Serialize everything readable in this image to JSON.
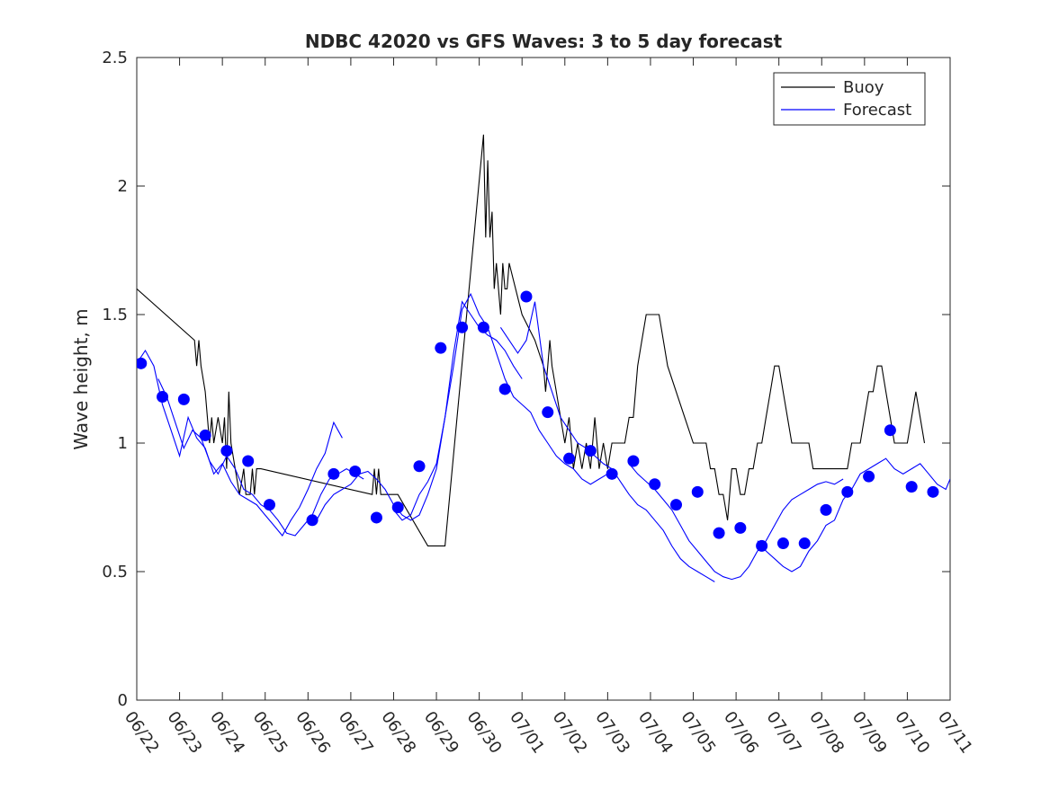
{
  "chart_data": {
    "type": "line",
    "title": "NDBC 42020 vs GFS Waves: 3 to 5 day forecast",
    "xlabel": "",
    "ylabel": "Wave height, m",
    "ylim": [
      0,
      2.5
    ],
    "xlim": [
      "06/22",
      "07/11"
    ],
    "grid": false,
    "legend_position": "top-right",
    "x_ticks": [
      "06/22",
      "06/23",
      "06/24",
      "06/25",
      "06/26",
      "06/27",
      "06/28",
      "06/29",
      "06/30",
      "07/01",
      "07/02",
      "07/03",
      "07/04",
      "07/05",
      "07/06",
      "07/07",
      "07/08",
      "07/09",
      "07/10",
      "07/11"
    ],
    "y_ticks": [
      "0",
      "0.5",
      "1",
      "1.5",
      "2",
      "2.5"
    ],
    "series": [
      {
        "name": "Buoy",
        "color": "#000000",
        "style": "line",
        "x": [
          0,
          1.35,
          1.4,
          1.45,
          1.5,
          1.6,
          1.7,
          1.75,
          1.8,
          1.9,
          2.0,
          2.05,
          2.1,
          2.15,
          2.2,
          2.3,
          2.4,
          2.5,
          2.55,
          2.6,
          2.65,
          2.7,
          2.75,
          2.8,
          2.9,
          5.5,
          5.55,
          5.6,
          5.65,
          5.7,
          5.8,
          5.9,
          6.0,
          6.1,
          6.8,
          6.9,
          7.0,
          7.1,
          7.2,
          8.1,
          8.15,
          8.2,
          8.25,
          8.3,
          8.35,
          8.4,
          8.5,
          8.55,
          8.6,
          8.65,
          8.7,
          9.0,
          9.3,
          9.5,
          9.55,
          9.6,
          9.65,
          9.7,
          9.8,
          9.9,
          10.0,
          10.1,
          10.2,
          10.3,
          10.4,
          10.5,
          10.6,
          10.7,
          10.8,
          10.9,
          11.0,
          11.1,
          11.2,
          11.3,
          11.4,
          11.5,
          11.6,
          11.7,
          11.8,
          11.9,
          12.0,
          12.2,
          12.4,
          12.6,
          12.8,
          13.0,
          13.1,
          13.2,
          13.3,
          13.4,
          13.5,
          13.6,
          13.7,
          13.8,
          13.9,
          14.0,
          14.1,
          14.2,
          14.3,
          14.4,
          14.5,
          14.6,
          14.7,
          14.8,
          14.9,
          15.0,
          15.1,
          15.2,
          15.3,
          15.4,
          15.5,
          15.6,
          15.7,
          15.8,
          15.9,
          16.0,
          16.1,
          16.2,
          16.3,
          16.4,
          16.5,
          16.6,
          16.7,
          16.8,
          16.9,
          17.0,
          17.1,
          17.2,
          17.3,
          17.4,
          17.5,
          17.6,
          17.7,
          17.8,
          17.9,
          18.0,
          18.1,
          18.2,
          18.3,
          18.4
        ],
        "y": [
          1.6,
          1.4,
          1.3,
          1.4,
          1.3,
          1.2,
          1.0,
          1.1,
          1.0,
          1.1,
          1.0,
          1.1,
          0.9,
          1.2,
          1.0,
          0.9,
          0.8,
          0.9,
          0.8,
          0.8,
          0.8,
          0.9,
          0.8,
          0.9,
          0.9,
          0.8,
          0.9,
          0.8,
          0.9,
          0.8,
          0.8,
          0.8,
          0.8,
          0.8,
          0.6,
          0.6,
          0.6,
          0.6,
          0.6,
          2.2,
          1.8,
          2.1,
          1.8,
          1.9,
          1.6,
          1.7,
          1.5,
          1.7,
          1.6,
          1.6,
          1.7,
          1.5,
          1.4,
          1.3,
          1.2,
          1.3,
          1.4,
          1.3,
          1.2,
          1.1,
          1.0,
          1.1,
          0.9,
          1.0,
          0.9,
          1.0,
          0.9,
          1.1,
          0.9,
          1.0,
          0.9,
          1.0,
          1.0,
          1.0,
          1.0,
          1.1,
          1.1,
          1.3,
          1.4,
          1.5,
          1.5,
          1.5,
          1.3,
          1.2,
          1.1,
          1.0,
          1.0,
          1.0,
          1.0,
          0.9,
          0.9,
          0.8,
          0.8,
          0.7,
          0.9,
          0.9,
          0.8,
          0.8,
          0.9,
          0.9,
          1.0,
          1.0,
          1.1,
          1.2,
          1.3,
          1.3,
          1.2,
          1.1,
          1.0,
          1.0,
          1.0,
          1.0,
          1.0,
          0.9,
          0.9,
          0.9,
          0.9,
          0.9,
          0.9,
          0.9,
          0.9,
          0.9,
          1.0,
          1.0,
          1.0,
          1.1,
          1.2,
          1.2,
          1.3,
          1.3,
          1.2,
          1.1,
          1.0,
          1.0,
          1.0,
          1.0,
          1.1,
          1.2,
          1.1,
          1.0
        ],
        "display_x_mode": "dense"
      },
      {
        "name": "Forecast",
        "color": "#0000ff",
        "style": "line",
        "runs": [
          {
            "x": [
              0,
              0.2,
              0.4,
              0.6,
              0.8,
              1.0,
              1.2,
              1.4,
              1.6,
              1.8,
              2.0,
              2.2,
              2.4,
              2.6,
              2.8,
              3.0,
              3.2,
              3.4,
              3.6,
              3.8,
              4.0,
              4.2,
              4.4,
              4.6,
              4.8
            ],
            "y": [
              1.31,
              1.36,
              1.3,
              1.15,
              1.05,
              0.95,
              1.1,
              1.02,
              0.98,
              0.88,
              0.92,
              0.85,
              0.8,
              0.78,
              0.76,
              0.72,
              0.68,
              0.64,
              0.7,
              0.75,
              0.82,
              0.9,
              0.96,
              1.08,
              1.02
            ]
          },
          {
            "x": [
              0.5,
              0.7,
              0.9,
              1.1,
              1.3,
              1.5,
              1.7,
              1.9,
              2.1,
              2.3,
              2.5,
              2.7,
              2.9,
              3.1,
              3.3,
              3.5,
              3.7,
              3.9,
              4.1,
              4.3,
              4.5,
              4.7,
              4.9,
              5.1,
              5.3
            ],
            "y": [
              1.25,
              1.18,
              1.08,
              0.98,
              1.05,
              1.02,
              0.93,
              0.88,
              0.95,
              0.9,
              0.82,
              0.8,
              0.76,
              0.74,
              0.7,
              0.65,
              0.64,
              0.68,
              0.72,
              0.8,
              0.86,
              0.88,
              0.9,
              0.88,
              0.86
            ]
          },
          {
            "x": [
              4.2,
              4.4,
              4.6,
              4.8,
              5.0,
              5.2,
              5.4,
              5.6,
              5.8,
              6.0,
              6.2,
              6.4,
              6.6,
              6.8,
              7.0,
              7.2,
              7.4,
              7.6,
              7.8,
              8.0,
              8.2,
              8.4,
              8.6,
              8.8,
              9.0
            ],
            "y": [
              0.7,
              0.76,
              0.8,
              0.82,
              0.84,
              0.88,
              0.89,
              0.86,
              0.82,
              0.76,
              0.72,
              0.7,
              0.72,
              0.8,
              0.9,
              1.1,
              1.35,
              1.55,
              1.5,
              1.45,
              1.42,
              1.4,
              1.36,
              1.3,
              1.25
            ]
          },
          {
            "x": [
              6.0,
              6.2,
              6.4,
              6.6,
              6.8,
              7.0,
              7.2,
              7.4,
              7.6,
              7.8,
              8.0,
              8.2,
              8.4,
              8.6,
              8.8,
              9.0,
              9.2,
              9.4,
              9.6,
              9.8,
              10.0,
              10.2,
              10.4,
              10.6,
              10.8,
              11.0
            ],
            "y": [
              0.74,
              0.7,
              0.72,
              0.8,
              0.85,
              0.92,
              1.1,
              1.3,
              1.52,
              1.58,
              1.5,
              1.45,
              1.35,
              1.25,
              1.18,
              1.15,
              1.12,
              1.05,
              1.0,
              0.95,
              0.92,
              0.9,
              0.86,
              0.84,
              0.86,
              0.88
            ]
          },
          {
            "x": [
              8.5,
              8.7,
              8.9,
              9.1,
              9.3,
              9.5,
              9.7,
              9.9,
              10.1,
              10.3,
              10.5,
              10.7,
              10.9,
              11.1,
              11.3,
              11.5,
              11.7,
              11.9,
              12.1,
              12.3,
              12.5,
              12.7,
              12.9,
              13.1,
              13.3,
              13.5
            ],
            "y": [
              1.45,
              1.4,
              1.35,
              1.4,
              1.55,
              1.3,
              1.2,
              1.1,
              1.05,
              1.0,
              0.98,
              0.95,
              0.92,
              0.9,
              0.85,
              0.8,
              0.76,
              0.74,
              0.7,
              0.66,
              0.6,
              0.55,
              0.52,
              0.5,
              0.48,
              0.46
            ]
          },
          {
            "x": [
              11.5,
              11.7,
              11.9,
              12.1,
              12.3,
              12.5,
              12.7,
              12.9,
              13.1,
              13.3,
              13.5,
              13.7,
              13.9,
              14.1,
              14.3,
              14.5,
              14.7,
              14.9,
              15.1,
              15.3,
              15.5,
              15.7,
              15.9,
              16.1,
              16.3,
              16.5
            ],
            "y": [
              0.92,
              0.88,
              0.85,
              0.82,
              0.78,
              0.74,
              0.68,
              0.62,
              0.58,
              0.54,
              0.5,
              0.48,
              0.47,
              0.48,
              0.52,
              0.58,
              0.62,
              0.68,
              0.74,
              0.78,
              0.8,
              0.82,
              0.84,
              0.85,
              0.84,
              0.86
            ]
          },
          {
            "x": [
              14.5,
              14.7,
              14.9,
              15.1,
              15.3,
              15.5,
              15.7,
              15.9,
              16.1,
              16.3,
              16.5,
              16.7,
              16.9,
              17.1,
              17.3,
              17.5,
              17.7,
              17.9,
              18.1,
              18.3,
              18.5,
              18.7,
              18.9,
              19.0
            ],
            "y": [
              0.62,
              0.58,
              0.55,
              0.52,
              0.5,
              0.52,
              0.58,
              0.62,
              0.68,
              0.7,
              0.78,
              0.82,
              0.88,
              0.9,
              0.92,
              0.94,
              0.9,
              0.88,
              0.9,
              0.92,
              0.88,
              0.84,
              0.82,
              0.86
            ]
          }
        ]
      }
    ],
    "markers": {
      "color": "#0000ff",
      "x": [
        0.1,
        0.6,
        1.1,
        1.6,
        2.1,
        2.6,
        3.1,
        4.1,
        4.6,
        5.1,
        5.6,
        6.1,
        6.6,
        7.1,
        7.6,
        8.1,
        8.6,
        9.1,
        9.6,
        10.1,
        10.6,
        11.1,
        11.6,
        12.1,
        12.6,
        13.1,
        13.6,
        14.1,
        14.6,
        15.1,
        15.6,
        16.1,
        16.6,
        17.1,
        17.6,
        18.1,
        18.6
      ],
      "y": [
        1.31,
        1.18,
        1.17,
        1.03,
        0.97,
        0.93,
        0.76,
        0.7,
        0.88,
        0.89,
        0.71,
        0.75,
        0.91,
        1.37,
        1.45,
        1.45,
        1.21,
        1.57,
        1.12,
        0.94,
        0.97,
        0.88,
        0.93,
        0.84,
        0.76,
        0.81,
        0.65,
        0.67,
        0.6,
        0.61,
        0.61,
        0.74,
        0.81,
        0.87,
        1.05,
        0.83,
        0.81
      ]
    }
  }
}
